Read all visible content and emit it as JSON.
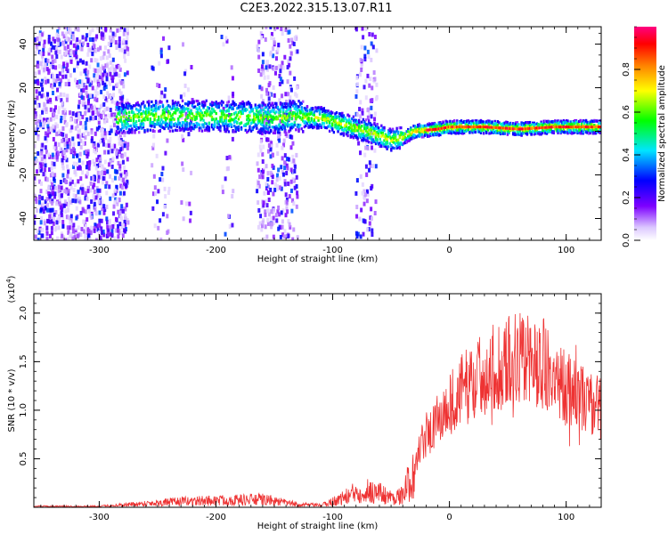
{
  "figure": {
    "title": "C2E3.2022.315.13.07.R11"
  },
  "chart_data": [
    {
      "type": "heatmap",
      "xlabel": "Height of straight line (km)",
      "ylabel": "Frequency (Hz)",
      "xlim": [
        -356,
        130
      ],
      "ylim": [
        -50,
        48
      ],
      "xticks": [
        -300,
        -200,
        -100,
        0,
        100
      ],
      "yticks": [
        -40,
        -20,
        0,
        20,
        40
      ],
      "colorbar": {
        "label": "Normalized spectral amplitude",
        "range": [
          0.0,
          1.0
        ],
        "ticks": [
          0.0,
          0.2,
          0.4,
          0.6,
          0.8
        ],
        "colormap": [
          "#e6d9ff",
          "#7d00ff",
          "#0000ff",
          "#00e5ff",
          "#00ff00",
          "#ffff00",
          "#ff8000",
          "#ff0000",
          "#ff0080"
        ]
      },
      "dominant_frequency_trend": [
        {
          "x": -280,
          "y": 6
        },
        {
          "x": -250,
          "y": 7
        },
        {
          "x": -200,
          "y": 7
        },
        {
          "x": -150,
          "y": 6
        },
        {
          "x": -130,
          "y": 7
        },
        {
          "x": -110,
          "y": 6
        },
        {
          "x": -90,
          "y": 3
        },
        {
          "x": -70,
          "y": 0
        },
        {
          "x": -50,
          "y": -4
        },
        {
          "x": -40,
          "y": -3
        },
        {
          "x": -30,
          "y": 0
        },
        {
          "x": -10,
          "y": 1
        },
        {
          "x": 0,
          "y": 2
        },
        {
          "x": 30,
          "y": 2
        },
        {
          "x": 60,
          "y": 1
        },
        {
          "x": 90,
          "y": 2
        },
        {
          "x": 130,
          "y": 2
        }
      ],
      "grid": false
    },
    {
      "type": "line",
      "xlabel": "Height of straight line (km)",
      "ylabel": "SNR (10 * v/v)",
      "y_multiplier": "(x10^4)",
      "xlim": [
        -356,
        130
      ],
      "ylim": [
        0,
        2.2
      ],
      "xticks": [
        -300,
        -200,
        -100,
        0,
        100
      ],
      "yticks": [
        0.5,
        1.0,
        1.5,
        2.0
      ],
      "series": [
        {
          "color": "#ee3333",
          "x": [
            -356,
            -300,
            -260,
            -230,
            -200,
            -160,
            -130,
            -110,
            -90,
            -75,
            -60,
            -50,
            -40,
            -30,
            -25,
            -20,
            -10,
            0,
            10,
            20,
            30,
            40,
            50,
            60,
            70,
            80,
            90,
            95,
            100,
            110,
            120,
            130
          ],
          "y": [
            0.01,
            0.01,
            0.04,
            0.06,
            0.07,
            0.08,
            0.03,
            0.02,
            0.1,
            0.18,
            0.15,
            0.1,
            0.12,
            0.4,
            0.6,
            0.75,
            0.9,
            1.05,
            1.2,
            1.3,
            1.38,
            1.45,
            1.5,
            1.52,
            1.5,
            1.47,
            1.42,
            1.3,
            1.22,
            1.15,
            1.08,
            1.02
          ]
        }
      ],
      "grid": false
    }
  ]
}
